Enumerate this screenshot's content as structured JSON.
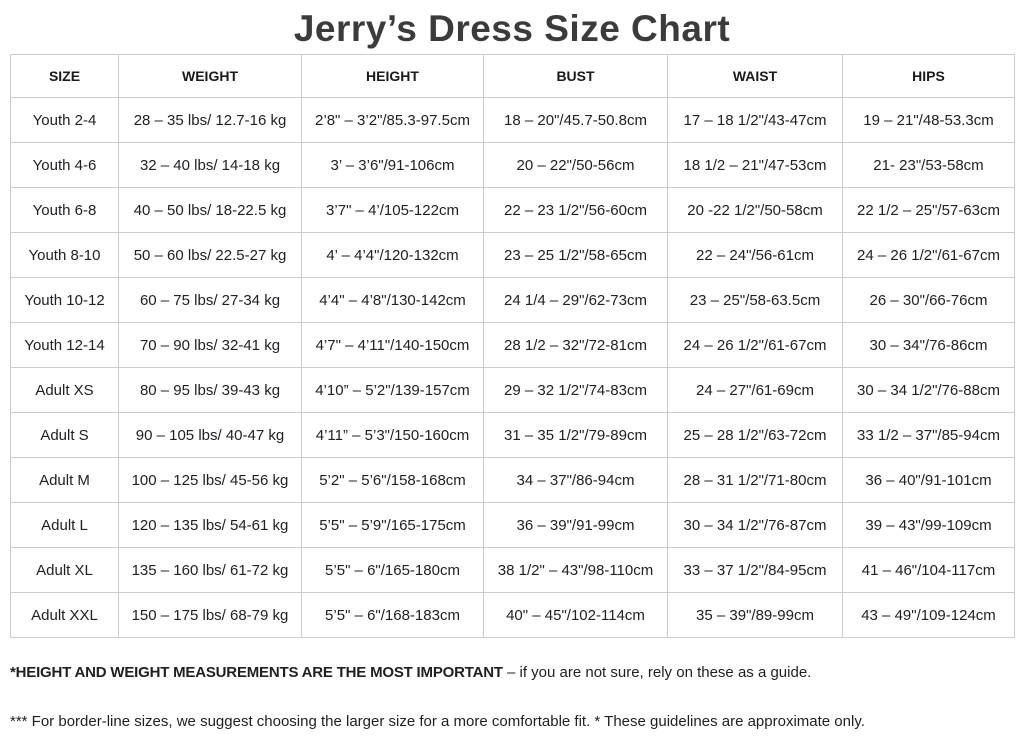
{
  "title": "Jerry’s Dress Size Chart",
  "colors": {
    "title": "#3b3b3b",
    "text": "#202124",
    "border": "#cccccc"
  },
  "table": {
    "headers": [
      "SIZE",
      "WEIGHT",
      "HEIGHT",
      "BUST",
      "WAIST",
      "HIPS"
    ],
    "rows": [
      [
        "Youth 2-4",
        "28 – 35 lbs/ 12.7-16 kg",
        "2’8\" – 3’2\"/85.3-97.5cm",
        "18 – 20\"/45.7-50.8cm",
        "17 – 18 1/2\"/43-47cm",
        "19 – 21\"/48-53.3cm"
      ],
      [
        "Youth 4-6",
        "32 – 40 lbs/ 14-18 kg",
        "3’ – 3’6\"/91-106cm",
        "20 – 22\"/50-56cm",
        "18 1/2 – 21\"/47-53cm",
        "21- 23\"/53-58cm"
      ],
      [
        "Youth 6-8",
        "40 – 50 lbs/ 18-22.5 kg",
        "3’7\" – 4’/105-122cm",
        "22 – 23 1/2\"/56-60cm",
        "20 -22 1/2\"/50-58cm",
        "22 1/2 – 25\"/57-63cm"
      ],
      [
        "Youth 8-10",
        "50 – 60 lbs/ 22.5-27 kg",
        "4’ – 4’4\"/120-132cm",
        "23 – 25 1/2\"/58-65cm",
        "22 – 24\"/56-61cm",
        "24 – 26 1/2\"/61-67cm"
      ],
      [
        "Youth 10-12",
        "60 – 75 lbs/ 27-34 kg",
        "4’4\" – 4’8\"/130-142cm",
        "24 1/4 – 29\"/62-73cm",
        "23 – 25\"/58-63.5cm",
        "26 – 30\"/66-76cm"
      ],
      [
        "Youth 12-14",
        "70 – 90 lbs/ 32-41 kg",
        "4’7\" – 4’11\"/140-150cm",
        "28 1/2 – 32\"/72-81cm",
        "24 – 26 1/2\"/61-67cm",
        "30 – 34\"/76-86cm"
      ],
      [
        "Adult XS",
        "80 – 95 lbs/ 39-43 kg",
        "4’10” – 5’2\"/139-157cm",
        "29 – 32 1/2\"/74-83cm",
        "24 – 27\"/61-69cm",
        "30 – 34 1/2\"/76-88cm"
      ],
      [
        "Adult S",
        "90 – 105 lbs/ 40-47 kg",
        "4’11” – 5’3\"/150-160cm",
        "31 – 35 1/2\"/79-89cm",
        "25 – 28 1/2\"/63-72cm",
        "33 1/2 – 37\"/85-94cm"
      ],
      [
        "Adult M",
        "100 – 125 lbs/ 45-56 kg",
        "5’2\" – 5’6\"/158-168cm",
        "34 – 37\"/86-94cm",
        "28 – 31 1/2\"/71-80cm",
        "36 – 40\"/91-101cm"
      ],
      [
        "Adult L",
        "120 – 135 lbs/ 54-61 kg",
        "5’5\" – 5’9\"/165-175cm",
        "36 – 39\"/91-99cm",
        "30 – 34 1/2\"/76-87cm",
        "39 – 43\"/99-109cm"
      ],
      [
        "Adult XL",
        "135 – 160 lbs/ 61-72 kg",
        "5’5\" – 6\"/165-180cm",
        "38 1/2\" – 43\"/98-110cm",
        "33 – 37 1/2\"/84-95cm",
        "41 – 46\"/104-117cm"
      ],
      [
        "Adult XXL",
        "150 – 175 lbs/ 68-79 kg",
        "5’5\" – 6\"/168-183cm",
        "40\" – 45\"/102-114cm",
        "35 – 39\"/89-99cm",
        "43 – 49\"/109-124cm"
      ]
    ]
  },
  "footnotes": {
    "note1_bold": "*HEIGHT AND WEIGHT MEASUREMENTS ARE THE MOST IMPORTANT",
    "note1_rest": " – if you are not sure, rely on these as a guide.",
    "note2": "*** For border-line sizes, we suggest choosing the larger size for a more comfortable fit. * These guidelines are approximate only."
  }
}
